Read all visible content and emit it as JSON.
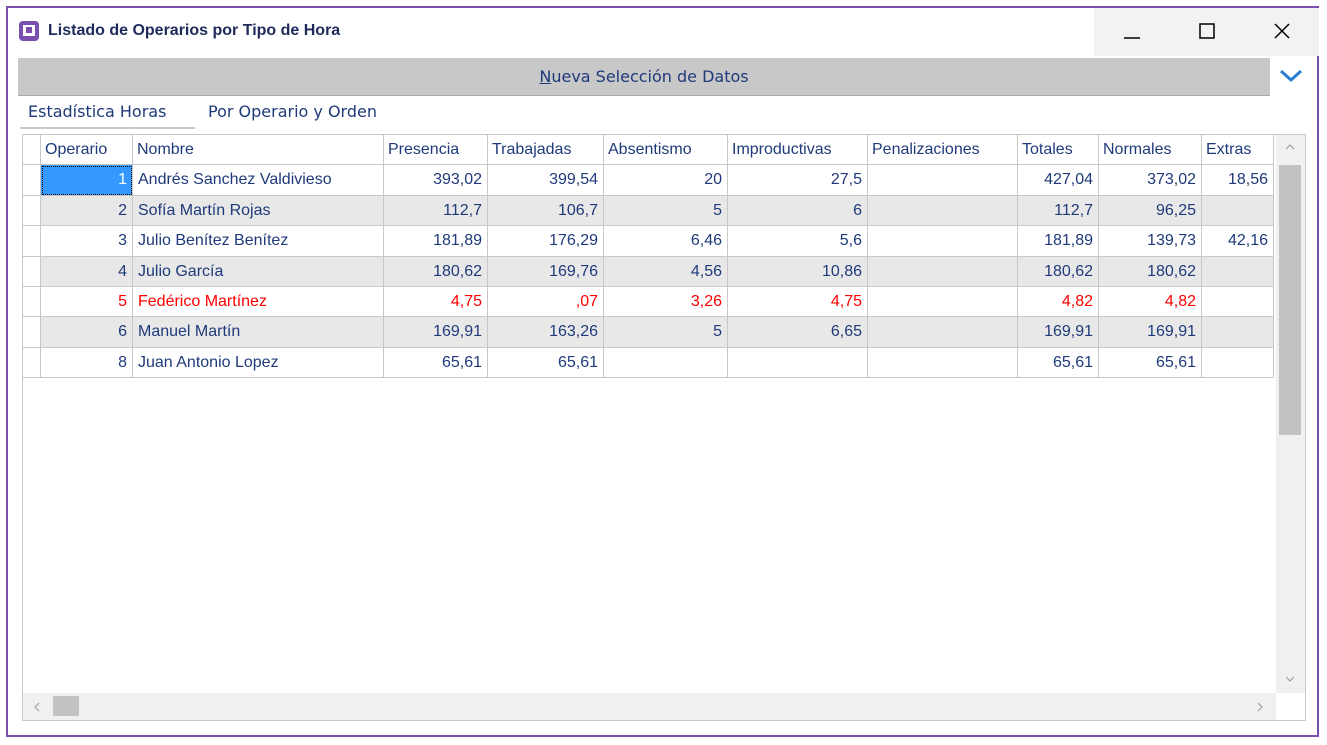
{
  "window": {
    "title": "Listado de Operarios por Tipo de Hora"
  },
  "toolbar": {
    "button": "Nueva Selección de Datos"
  },
  "tabs": [
    "Estadística Horas",
    "Por Operario y Orden"
  ],
  "table": {
    "columns": [
      "Operario",
      "Nombre",
      "Presencia",
      "Trabajadas",
      "Absentismo",
      "Improductivas",
      "Penalizaciones",
      "Totales",
      "Normales",
      "Extras"
    ],
    "rows": [
      {
        "cells": [
          "1",
          "Andrés Sanchez Valdivieso",
          "393,02",
          "399,54",
          "20",
          "27,5",
          null,
          "427,04",
          "373,02",
          "18,56"
        ]
      },
      {
        "cells": [
          "2",
          "Sofía Martín Rojas",
          "112,7",
          "106,7",
          "5",
          "6",
          null,
          "112,7",
          "96,25",
          null
        ]
      },
      {
        "cells": [
          "3",
          "Julio Benítez Benítez",
          "181,89",
          "176,29",
          "6,46",
          "5,6",
          null,
          "181,89",
          "139,73",
          "42,16"
        ]
      },
      {
        "cells": [
          "4",
          "Julio García",
          "180,62",
          "169,76",
          "4,56",
          "10,86",
          null,
          "180,62",
          "180,62",
          null
        ]
      },
      {
        "cells": [
          "5",
          "Fedérico Martínez",
          "4,75",
          ",07",
          "3,26",
          "4,75",
          null,
          "4,82",
          "4,82",
          null
        ],
        "color": "#ff0000"
      },
      {
        "cells": [
          "6",
          "Manuel Martín",
          "169,91",
          "163,26",
          "5",
          "6,65",
          null,
          "169,91",
          "169,91",
          null
        ]
      },
      {
        "cells": [
          "8",
          "Juan Antonio Lopez",
          "65,61",
          "65,61",
          null,
          null,
          null,
          "65,61",
          "65,61",
          null
        ]
      }
    ]
  }
}
